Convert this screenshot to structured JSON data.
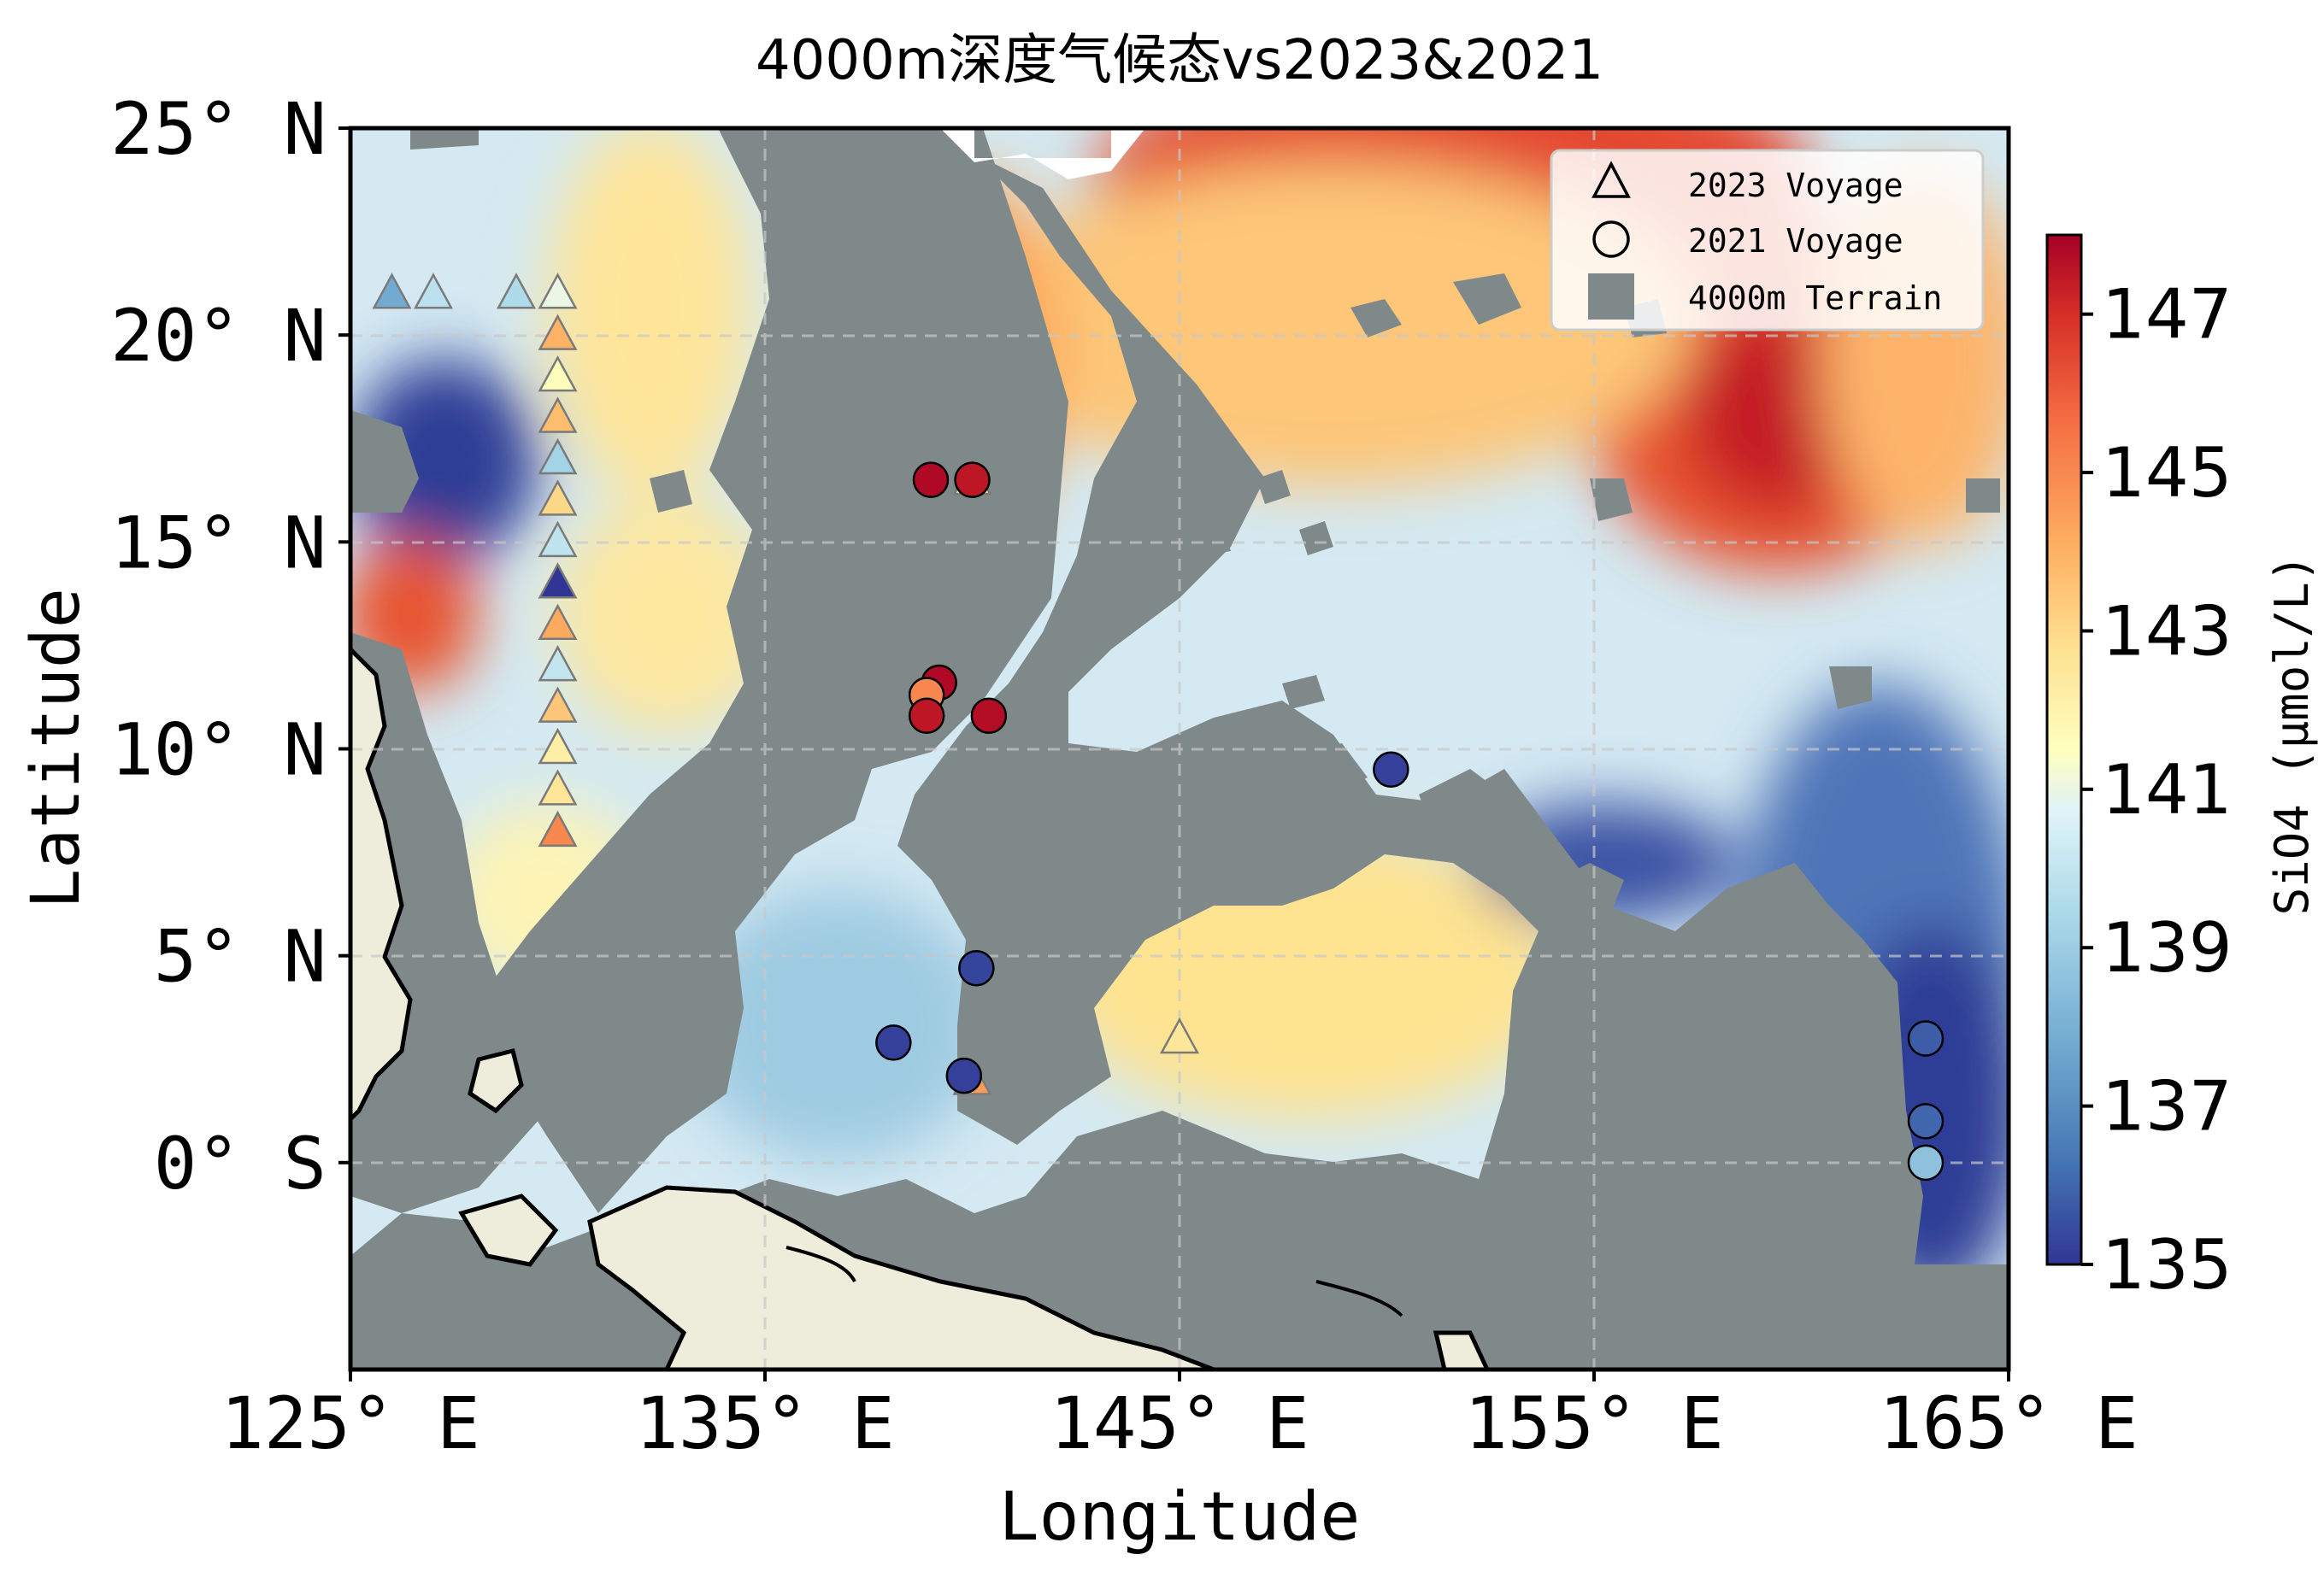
{
  "title": "4000m深度气候态vs2023&2021",
  "chart_data": {
    "type": "scatter",
    "map_extent": {
      "lon": [
        125,
        165
      ],
      "lat": [
        -5,
        25
      ]
    },
    "xlabel": "Longitude",
    "ylabel": "Latitude",
    "x_ticks": [
      {
        "value": 125,
        "label": "125° E"
      },
      {
        "value": 135,
        "label": "135° E"
      },
      {
        "value": 145,
        "label": "145° E"
      },
      {
        "value": 155,
        "label": "155° E"
      },
      {
        "value": 165,
        "label": "165° E"
      }
    ],
    "y_ticks": [
      {
        "value": 25,
        "label": "25° N"
      },
      {
        "value": 20,
        "label": "20° N"
      },
      {
        "value": 15,
        "label": "15° N"
      },
      {
        "value": 10,
        "label": "10° N"
      },
      {
        "value": 5,
        "label": "5° N"
      },
      {
        "value": 0,
        "label": "0° S"
      }
    ],
    "grid": true,
    "legend_position": "top-right",
    "legend": [
      {
        "marker": "triangle",
        "label": "2023 Voyage"
      },
      {
        "marker": "circle",
        "label": "2021 Voyage"
      },
      {
        "marker": "square",
        "label": "4000m Terrain"
      }
    ],
    "colorbar": {
      "label": "SiO4 (μmol/L)",
      "range": [
        135,
        148
      ],
      "ticks": [
        "135",
        "137",
        "139",
        "141",
        "143",
        "145",
        "147"
      ],
      "colormap": "RdYlBu_r"
    },
    "series": [
      {
        "name": "2023 Voyage",
        "marker": "triangle",
        "points": [
          {
            "lon": 126.0,
            "lat": 21.0,
            "si": 137.8
          },
          {
            "lon": 127.0,
            "lat": 21.0,
            "si": 139.8
          },
          {
            "lon": 129.0,
            "lat": 21.0,
            "si": 139.5
          },
          {
            "lon": 130.0,
            "lat": 21.0,
            "si": 141.0
          },
          {
            "lon": 130.0,
            "lat": 20.0,
            "si": 144.0
          },
          {
            "lon": 130.0,
            "lat": 19.0,
            "si": 141.6
          },
          {
            "lon": 130.0,
            "lat": 18.0,
            "si": 143.7
          },
          {
            "lon": 130.0,
            "lat": 17.0,
            "si": 139.2
          },
          {
            "lon": 130.0,
            "lat": 16.0,
            "si": 143.0
          },
          {
            "lon": 130.0,
            "lat": 15.0,
            "si": 139.9
          },
          {
            "lon": 130.0,
            "lat": 14.0,
            "si": 135.0
          },
          {
            "lon": 130.0,
            "lat": 13.0,
            "si": 144.2
          },
          {
            "lon": 130.0,
            "lat": 12.0,
            "si": 140.0
          },
          {
            "lon": 130.0,
            "lat": 11.0,
            "si": 143.5
          },
          {
            "lon": 130.0,
            "lat": 10.0,
            "si": 142.2
          },
          {
            "lon": 130.0,
            "lat": 9.0,
            "si": 142.6
          },
          {
            "lon": 130.0,
            "lat": 8.0,
            "si": 145.0
          },
          {
            "lon": 140.0,
            "lat": 16.5,
            "si": 142.8
          },
          {
            "lon": 140.0,
            "lat": 2.0,
            "si": 144.5
          },
          {
            "lon": 145.0,
            "lat": 3.0,
            "si": 142.5
          }
        ]
      },
      {
        "name": "2021 Voyage",
        "marker": "circle",
        "points": [
          {
            "lon": 139.0,
            "lat": 16.5,
            "si": 147.8
          },
          {
            "lon": 140.0,
            "lat": 16.5,
            "si": 147.5
          },
          {
            "lon": 139.2,
            "lat": 11.6,
            "si": 147.8
          },
          {
            "lon": 138.9,
            "lat": 11.3,
            "si": 145.0
          },
          {
            "lon": 138.9,
            "lat": 10.8,
            "si": 147.5
          },
          {
            "lon": 140.4,
            "lat": 10.8,
            "si": 147.7
          },
          {
            "lon": 150.1,
            "lat": 9.5,
            "si": 135.2
          },
          {
            "lon": 140.1,
            "lat": 4.7,
            "si": 135.3
          },
          {
            "lon": 138.1,
            "lat": 2.9,
            "si": 135.2
          },
          {
            "lon": 139.8,
            "lat": 2.1,
            "si": 135.2
          },
          {
            "lon": 163.0,
            "lat": 3.0,
            "si": 135.8
          },
          {
            "lon": 163.0,
            "lat": 1.0,
            "si": 136.0
          },
          {
            "lon": 163.0,
            "lat": 0.0,
            "si": 138.6
          }
        ]
      }
    ]
  }
}
